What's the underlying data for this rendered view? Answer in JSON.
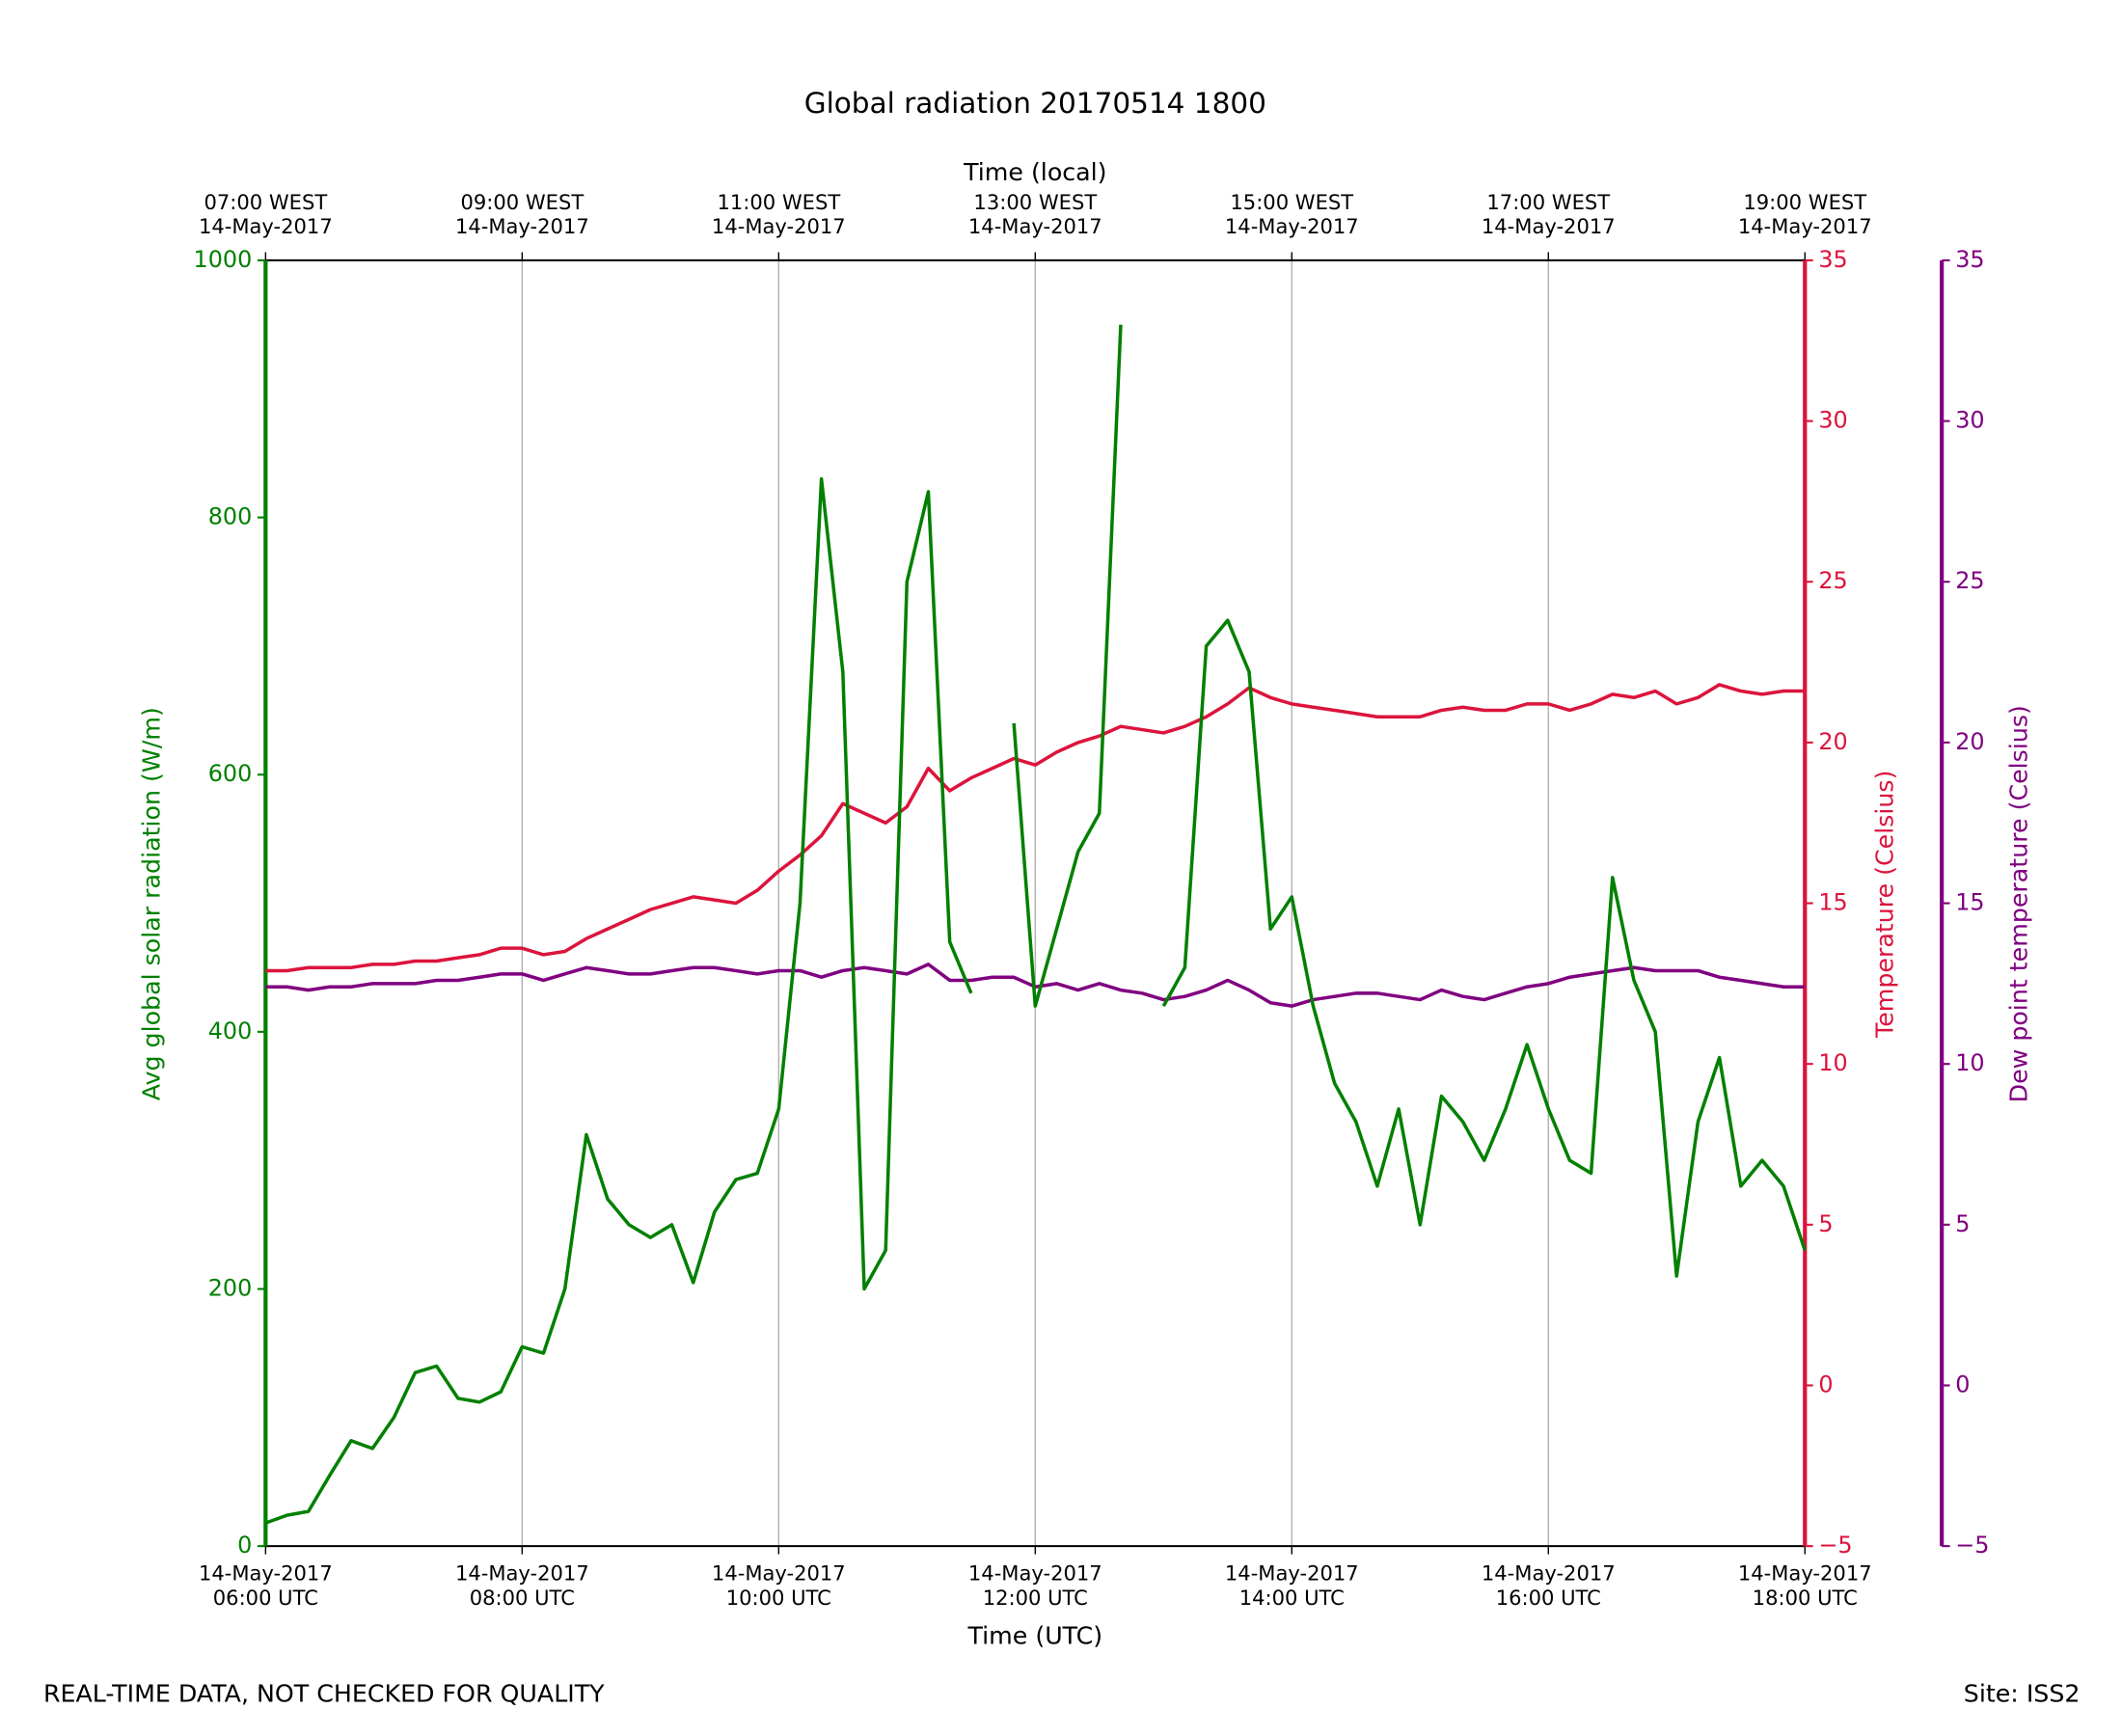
{
  "chart_data": {
    "type": "line",
    "title": "Global radiation 20170514 1800",
    "xlabel": "Time (UTC)",
    "x2label": "Time (local)",
    "ylabel": "Avg global solar radiation (W/m)",
    "y2label": "Temperature (Celsius)",
    "y3label": "Dew point temperature (Celsius)",
    "annotations": [
      "REAL-TIME DATA, NOT CHECKED FOR QUALITY",
      "Site: ISS2"
    ],
    "grid": true,
    "x": [
      "06:00",
      "06:10",
      "06:20",
      "06:30",
      "06:40",
      "06:50",
      "07:00",
      "07:10",
      "07:20",
      "07:30",
      "07:40",
      "07:50",
      "08:00",
      "08:10",
      "08:20",
      "08:30",
      "08:40",
      "08:50",
      "09:00",
      "09:10",
      "09:20",
      "09:30",
      "09:40",
      "09:50",
      "10:00",
      "10:10",
      "10:20",
      "10:30",
      "10:40",
      "10:50",
      "11:00",
      "11:10",
      "11:20",
      "11:30",
      "11:40",
      "11:50",
      "12:00",
      "12:10",
      "12:20",
      "12:30",
      "12:40",
      "12:50",
      "13:00",
      "13:10",
      "13:20",
      "13:30",
      "13:40",
      "13:50",
      "14:00",
      "14:10",
      "14:20",
      "14:30",
      "14:40",
      "14:50",
      "15:00",
      "15:10",
      "15:20",
      "15:30",
      "15:40",
      "15:50",
      "16:00",
      "16:10",
      "16:20",
      "16:30",
      "16:40",
      "16:50",
      "17:00",
      "17:10",
      "17:20",
      "17:30",
      "17:40",
      "17:50",
      "18:00"
    ],
    "xlim": [
      "06:00",
      "18:00"
    ],
    "xticks": [
      {
        "value": "06:00",
        "label": "14-May-2017\n06:00 UTC"
      },
      {
        "value": "08:00",
        "label": "14-May-2017\n08:00 UTC"
      },
      {
        "value": "10:00",
        "label": "14-May-2017\n10:00 UTC"
      },
      {
        "value": "12:00",
        "label": "14-May-2017\n12:00 UTC"
      },
      {
        "value": "14:00",
        "label": "14-May-2017\n14:00 UTC"
      },
      {
        "value": "16:00",
        "label": "14-May-2017\n16:00 UTC"
      },
      {
        "value": "18:00",
        "label": "14-May-2017\n18:00 UTC"
      }
    ],
    "x2ticks": [
      {
        "value": "06:00",
        "label": "07:00 WEST\n14-May-2017"
      },
      {
        "value": "08:00",
        "label": "09:00 WEST\n14-May-2017"
      },
      {
        "value": "10:00",
        "label": "11:00 WEST\n14-May-2017"
      },
      {
        "value": "12:00",
        "label": "13:00 WEST\n14-May-2017"
      },
      {
        "value": "14:00",
        "label": "15:00 WEST\n14-May-2017"
      },
      {
        "value": "16:00",
        "label": "17:00 WEST\n14-May-2017"
      },
      {
        "value": "18:00",
        "label": "19:00 WEST\n14-May-2017"
      }
    ],
    "ylim": [
      0,
      1000
    ],
    "yticks": [
      0,
      200,
      400,
      600,
      800,
      1000
    ],
    "y2lim": [
      -5,
      35
    ],
    "y2ticks": [
      {
        "value": -5,
        "label": "−5"
      },
      0,
      5,
      10,
      15,
      20,
      25,
      30,
      35
    ],
    "y3lim": [
      -5,
      35
    ],
    "y3ticks": [
      {
        "value": -5,
        "label": "−5"
      },
      0,
      5,
      10,
      15,
      20,
      25,
      30,
      35
    ],
    "series": [
      {
        "name": "Avg global solar radiation",
        "color": "#008000",
        "axis": "y",
        "values": [
          18,
          24,
          27,
          55,
          82,
          76,
          100,
          135,
          140,
          115,
          112,
          120,
          155,
          150,
          200,
          320,
          270,
          250,
          240,
          250,
          205,
          260,
          285,
          290,
          340,
          500,
          830,
          680,
          200,
          230,
          750,
          820,
          470,
          430,
          null,
          640,
          420,
          480,
          540,
          570,
          950,
          null,
          420,
          450,
          700,
          720,
          680,
          480,
          505,
          420,
          360,
          330,
          280,
          340,
          250,
          350,
          330,
          300,
          340,
          390,
          340,
          300,
          290,
          520,
          440,
          400,
          210,
          330,
          380,
          280,
          300,
          280,
          230
        ]
      },
      {
        "name": "Temperature",
        "color": "#dc143c",
        "axis": "y2",
        "values": [
          12.9,
          12.9,
          13.0,
          13.0,
          13.0,
          13.1,
          13.1,
          13.2,
          13.2,
          13.3,
          13.4,
          13.6,
          13.6,
          13.4,
          13.5,
          13.9,
          14.2,
          14.5,
          14.8,
          15.0,
          15.2,
          15.1,
          15.0,
          15.4,
          16.0,
          16.5,
          17.1,
          18.1,
          17.8,
          17.5,
          18.0,
          19.2,
          18.5,
          18.9,
          19.2,
          19.5,
          19.3,
          19.7,
          20.0,
          20.2,
          20.5,
          20.4,
          20.3,
          20.5,
          20.8,
          21.2,
          21.7,
          21.4,
          21.2,
          21.1,
          21.0,
          20.9,
          20.8,
          20.8,
          20.8,
          21.0,
          21.1,
          21.0,
          21.0,
          21.2,
          21.2,
          21.0,
          21.2,
          21.5,
          21.4,
          21.6,
          21.2,
          21.4,
          21.8,
          21.6,
          21.5,
          21.6,
          21.6
        ]
      },
      {
        "name": "Dew point temperature",
        "color": "#800080",
        "axis": "y3",
        "values": [
          12.4,
          12.4,
          12.3,
          12.4,
          12.4,
          12.5,
          12.5,
          12.5,
          12.6,
          12.6,
          12.7,
          12.8,
          12.8,
          12.6,
          12.8,
          13.0,
          12.9,
          12.8,
          12.8,
          12.9,
          13.0,
          13.0,
          12.9,
          12.8,
          12.9,
          12.9,
          12.7,
          12.9,
          13.0,
          12.9,
          12.8,
          13.1,
          12.6,
          12.6,
          12.7,
          12.7,
          12.4,
          12.5,
          12.3,
          12.5,
          12.3,
          12.2,
          12.0,
          12.1,
          12.3,
          12.6,
          12.3,
          11.9,
          11.8,
          12.0,
          12.1,
          12.2,
          12.2,
          12.1,
          12.0,
          12.3,
          12.1,
          12.0,
          12.2,
          12.4,
          12.5,
          12.7,
          12.8,
          12.9,
          13.0,
          12.9,
          12.9,
          12.9,
          12.7,
          12.6,
          12.5,
          12.4,
          12.4
        ]
      }
    ]
  }
}
